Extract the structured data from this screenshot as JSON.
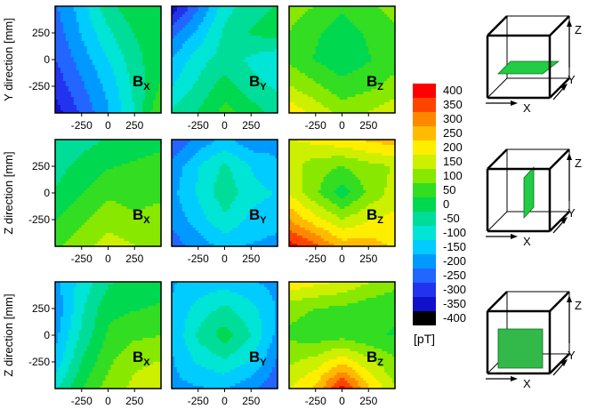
{
  "chart_data": {
    "type": "heatmap",
    "colorbar": {
      "unit_label": "[pT]",
      "ticks": [
        "400",
        "350",
        "300",
        "250",
        "200",
        "150",
        "100",
        "50",
        "0",
        "-50",
        "-100",
        "-150",
        "-200",
        "-250",
        "-300",
        "-350",
        "-400"
      ],
      "colors": [
        "#ff0000",
        "#ff4400",
        "#ff8800",
        "#ffbb00",
        "#ffee00",
        "#ccf000",
        "#88e800",
        "#33dd22",
        "#00d850",
        "#00dd99",
        "#00e5d5",
        "#00ccff",
        "#0099ff",
        "#2266ff",
        "#2233ee",
        "#1111cc",
        "#000000"
      ],
      "range": [
        -400,
        400
      ]
    },
    "x_ticks": [
      "-250",
      "0",
      "250"
    ],
    "y_ticks": [
      "250",
      "0",
      "-250"
    ],
    "x_range": [
      -500,
      500
    ],
    "y_range": [
      -500,
      500
    ],
    "rows": [
      {
        "ylabel": "Y direction [mm]",
        "panels": [
          {
            "component": "B",
            "subscript": "X",
            "grid": [
              [
                -220,
                -140,
                -40,
                10,
                10
              ],
              [
                -240,
                -160,
                -80,
                -20,
                0
              ],
              [
                -260,
                -190,
                -120,
                -40,
                10
              ],
              [
                -290,
                -220,
                -150,
                -60,
                30
              ],
              [
                -330,
                -250,
                -170,
                -70,
                80
              ]
            ]
          },
          {
            "component": "B",
            "subscript": "Y",
            "grid": [
              [
                -340,
                -220,
                -90,
                -40,
                -20
              ],
              [
                -230,
                -150,
                -60,
                -20,
                0
              ],
              [
                -160,
                -90,
                -50,
                -80,
                -110
              ],
              [
                -120,
                -60,
                0,
                -50,
                -80
              ],
              [
                -60,
                -20,
                40,
                0,
                -40
              ]
            ]
          },
          {
            "component": "B",
            "subscript": "Z",
            "grid": [
              [
                90,
                70,
                30,
                60,
                90
              ],
              [
                70,
                30,
                0,
                30,
                60
              ],
              [
                60,
                20,
                -10,
                20,
                50
              ],
              [
                120,
                80,
                40,
                60,
                90
              ],
              [
                200,
                150,
                100,
                120,
                150
              ]
            ]
          }
        ]
      },
      {
        "ylabel": "Z direction [mm]",
        "panels": [
          {
            "component": "B",
            "subscript": "X",
            "grid": [
              [
                -60,
                -40,
                -20,
                0,
                10
              ],
              [
                -40,
                -10,
                20,
                30,
                40
              ],
              [
                -20,
                20,
                60,
                50,
                60
              ],
              [
                20,
                60,
                100,
                80,
                90
              ],
              [
                60,
                100,
                140,
                120,
                110
              ]
            ]
          },
          {
            "component": "B",
            "subscript": "Y",
            "grid": [
              [
                -260,
                -200,
                -150,
                -200,
                -180
              ],
              [
                -200,
                -120,
                -60,
                -120,
                -160
              ],
              [
                -180,
                -110,
                -40,
                -100,
                -120
              ],
              [
                -200,
                -140,
                -80,
                -130,
                -150
              ],
              [
                -240,
                -190,
                -150,
                -170,
                -180
              ]
            ]
          },
          {
            "component": "B",
            "subscript": "Z",
            "grid": [
              [
                160,
                180,
                200,
                220,
                240
              ],
              [
                140,
                90,
                70,
                100,
                120
              ],
              [
                160,
                80,
                0,
                80,
                140
              ],
              [
                260,
                180,
                120,
                160,
                180
              ],
              [
                380,
                320,
                240,
                240,
                200
              ]
            ]
          }
        ]
      },
      {
        "ylabel": "Z direction [mm]",
        "panels": [
          {
            "component": "B",
            "subscript": "X",
            "grid": [
              [
                -180,
                -100,
                -30,
                -10,
                0
              ],
              [
                -200,
                -80,
                10,
                20,
                30
              ],
              [
                -180,
                -60,
                30,
                60,
                70
              ],
              [
                -150,
                -20,
                60,
                110,
                120
              ],
              [
                -80,
                20,
                90,
                130,
                140
              ]
            ]
          },
          {
            "component": "B",
            "subscript": "Y",
            "grid": [
              [
                -170,
                -150,
                -140,
                -160,
                -180
              ],
              [
                -160,
                -100,
                -60,
                -100,
                -170
              ],
              [
                -160,
                -60,
                0,
                -70,
                -180
              ],
              [
                -170,
                -110,
                -80,
                -120,
                -220
              ],
              [
                -180,
                -170,
                -160,
                -200,
                -250
              ]
            ]
          },
          {
            "component": "B",
            "subscript": "Z",
            "grid": [
              [
                200,
                180,
                160,
                120,
                90
              ],
              [
                90,
                70,
                60,
                40,
                30
              ],
              [
                60,
                40,
                50,
                30,
                20
              ],
              [
                110,
                140,
                200,
                130,
                80
              ],
              [
                160,
                220,
                380,
                220,
                120
              ]
            ]
          }
        ]
      }
    ],
    "cube_axis_labels": {
      "z": "Z",
      "y": "Y",
      "x": "X"
    }
  }
}
